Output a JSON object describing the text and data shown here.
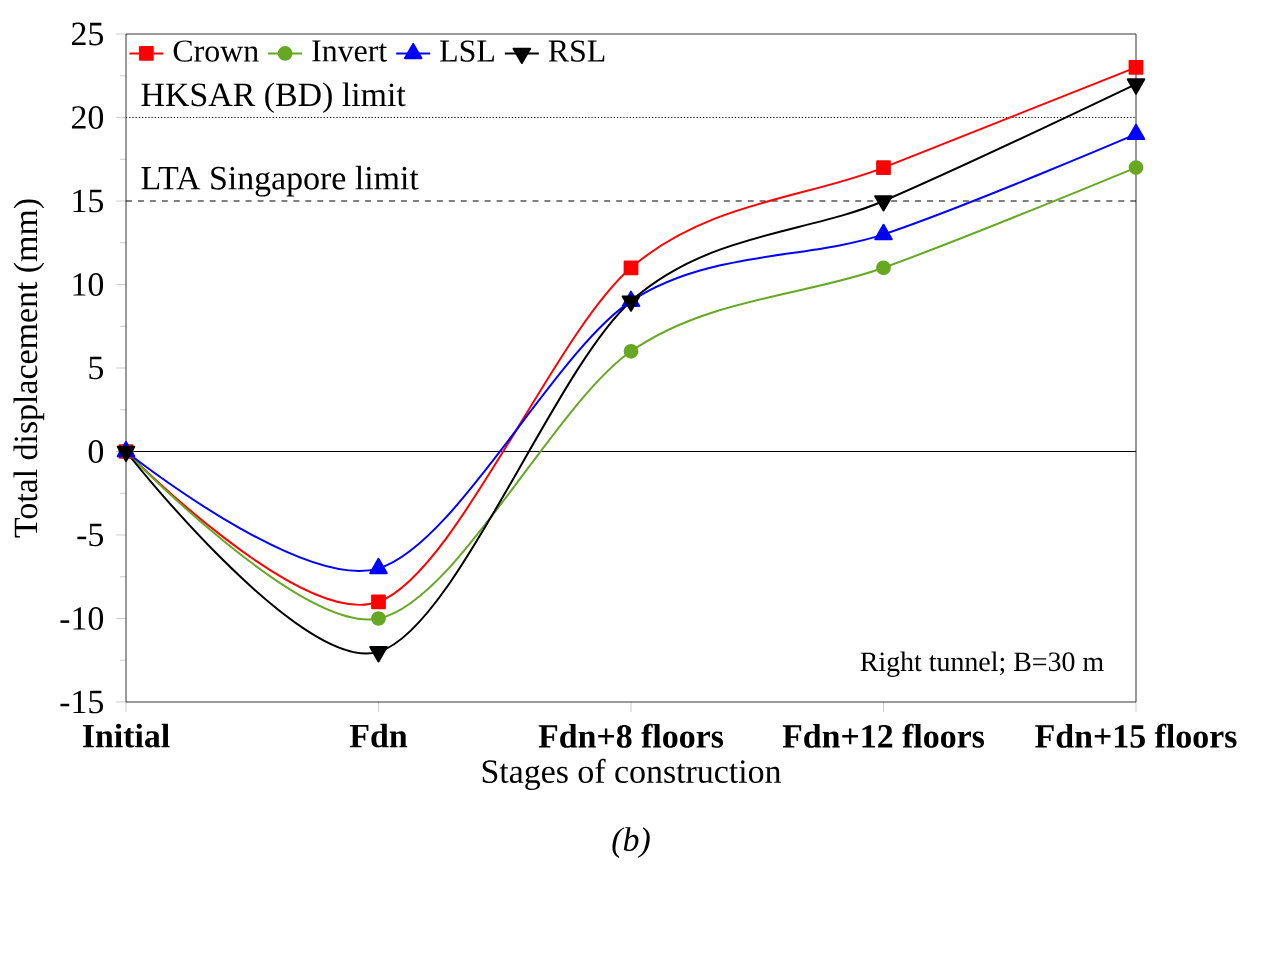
{
  "chart_data": {
    "type": "line",
    "xlabel": "Stages of construction",
    "ylabel": "Total displacement (mm)",
    "categories": [
      "Initial",
      "Fdn",
      "Fdn+8 floors",
      "Fdn+12 floors",
      "Fdn+15 floors"
    ],
    "series": [
      {
        "name": "Crown",
        "color": "#ff0000",
        "marker": "square",
        "values": [
          0,
          -9,
          11,
          17,
          23
        ]
      },
      {
        "name": "Invert",
        "color": "#66a822",
        "marker": "circle",
        "values": [
          0,
          -10,
          6,
          11,
          17
        ]
      },
      {
        "name": "LSL",
        "color": "#0000ff",
        "marker": "triangle",
        "values": [
          0,
          -7,
          9,
          13,
          19
        ]
      },
      {
        "name": "RSL",
        "color": "#000000",
        "marker": "triangle down",
        "values": [
          0,
          -12,
          9,
          15,
          22
        ]
      }
    ],
    "ylim": [
      -15,
      25
    ],
    "yticks": [
      -15,
      -10,
      -5,
      0,
      5,
      10,
      15,
      20,
      25
    ],
    "ref_lines": [
      {
        "axis": "y",
        "value": 20,
        "label": "HKSAR (BD) limit",
        "line_style": "dotted",
        "color": "#000000"
      },
      {
        "axis": "y",
        "value": 15,
        "label": "LTA Singapore limit",
        "line_style": "dashed",
        "color": "#000000"
      },
      {
        "axis": "y",
        "value": 0,
        "line_style": "solid",
        "color": "#000000"
      }
    ],
    "annotations": [
      "Right tunnel; B=30 m",
      "(b)"
    ],
    "legend": "top left",
    "grid": false,
    "line_style": "solid"
  }
}
